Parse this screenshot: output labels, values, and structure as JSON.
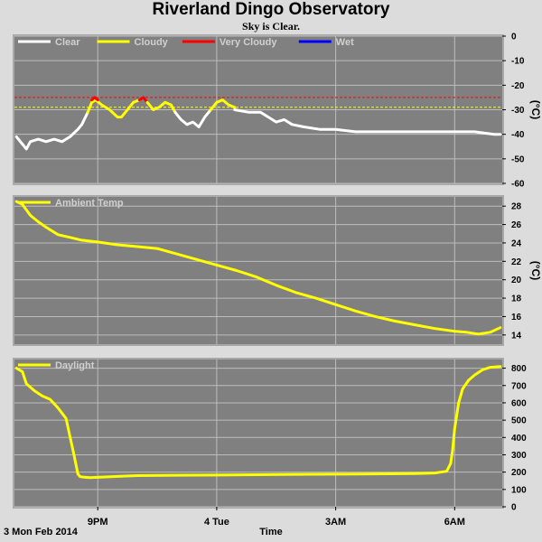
{
  "header": {
    "title": "Riverland Dingo Observatory",
    "subtitle": "Sky is Clear."
  },
  "footer": {
    "date": "3 Mon Feb 2014",
    "xlabel": "Time"
  },
  "colors": {
    "plot_bg": "#808080",
    "grid": "#bdbdbd",
    "frame": "#a8a8a8",
    "page": "#dcdcdc",
    "clear": "#ffffff",
    "cloudy": "#ffff00",
    "very_cloudy": "#ff0000",
    "wet": "#0000ff"
  },
  "x_ticks": [
    {
      "t": 9,
      "label": "9PM"
    },
    {
      "t": 12,
      "label": "4 Tue"
    },
    {
      "t": 15,
      "label": "3AM"
    },
    {
      "t": 18,
      "label": "6AM"
    }
  ],
  "x_domain": [
    6.9,
    19.2
  ],
  "chart_data": [
    {
      "type": "line",
      "title": "",
      "ylabel": "(°C)",
      "ylim": [
        -60,
        0
      ],
      "y_ticks": [
        0,
        -10,
        -20,
        -30,
        -40,
        -50,
        -60
      ],
      "legend": [
        "Clear",
        "Cloudy",
        "Very Cloudy",
        "Wet"
      ],
      "thresholds": [
        {
          "y": -25,
          "color": "#ff0000"
        },
        {
          "y": -29,
          "color": "#ffff00"
        }
      ],
      "series": [
        {
          "name": "Clear",
          "color": "#ffffff",
          "x": [
            6.95,
            7.1,
            7.2,
            7.3,
            7.5,
            7.7,
            7.9,
            8.1,
            8.3,
            8.5,
            8.6,
            8.75
          ],
          "y": [
            -41,
            -44,
            -46,
            -43,
            -42,
            -43,
            -42,
            -43,
            -41,
            -38,
            -36,
            -31
          ]
        },
        {
          "name": "Cloudy",
          "color": "#ffff00",
          "x": [
            8.75,
            8.85,
            8.95,
            9.1,
            9.3,
            9.5,
            9.6,
            9.7,
            9.8,
            9.9,
            10.05
          ],
          "y": [
            -31,
            -27,
            -26,
            -28,
            -30,
            -33,
            -33,
            -31,
            -29,
            -27,
            -26
          ]
        },
        {
          "name": "Very Cloudy",
          "color": "#ff0000",
          "x": [
            8.85,
            8.92,
            9.0
          ],
          "y": [
            -26,
            -25,
            -26
          ]
        },
        {
          "name": "Very Cloudy",
          "color": "#ff0000",
          "x": [
            10.05,
            10.15,
            10.25
          ],
          "y": [
            -26,
            -25,
            -27
          ]
        },
        {
          "name": "Cloudy",
          "color": "#ffff00",
          "x": [
            10.25,
            10.4,
            10.55,
            10.7,
            10.85,
            10.95
          ],
          "y": [
            -27,
            -30,
            -29,
            -27,
            -28,
            -31
          ]
        },
        {
          "name": "Clear",
          "color": "#ffffff",
          "x": [
            10.95,
            11.1,
            11.25,
            11.4,
            11.55,
            11.7,
            11.85
          ],
          "y": [
            -31,
            -34,
            -36,
            -35,
            -37,
            -33,
            -30
          ]
        },
        {
          "name": "Cloudy",
          "color": "#ffff00",
          "x": [
            11.85,
            12.0,
            12.15,
            12.3,
            12.45
          ],
          "y": [
            -30,
            -27,
            -26,
            -28,
            -29
          ]
        },
        {
          "name": "Clear",
          "color": "#ffffff",
          "x": [
            12.45,
            12.8,
            13.1,
            13.3,
            13.5,
            13.7,
            13.9,
            14.2,
            14.6,
            15.0,
            15.5,
            16.0,
            16.5,
            17.0,
            17.5,
            18.0,
            18.5,
            19.0,
            19.15
          ],
          "y": [
            -30,
            -31,
            -31,
            -33,
            -35,
            -34,
            -36,
            -37,
            -38,
            -38,
            -39,
            -39,
            -39,
            -39,
            -39,
            -39,
            -39,
            -40,
            -40
          ]
        }
      ]
    },
    {
      "type": "line",
      "title": "",
      "ylabel": "(°C)",
      "ylim": [
        13,
        29
      ],
      "y_ticks": [
        14,
        16,
        18,
        20,
        22,
        24,
        26,
        28
      ],
      "legend": [
        "Ambient Temp"
      ],
      "series": [
        {
          "name": "Ambient Temp",
          "color": "#ffff00",
          "x": [
            6.95,
            7.1,
            7.3,
            7.5,
            7.7,
            8.0,
            8.3,
            8.6,
            9.0,
            9.5,
            10.0,
            10.5,
            11.0,
            11.5,
            12.0,
            12.5,
            13.0,
            13.5,
            14.0,
            14.5,
            15.0,
            15.5,
            16.0,
            16.5,
            17.0,
            17.5,
            18.0,
            18.3,
            18.6,
            18.9,
            19.15
          ],
          "y": [
            28.5,
            28.2,
            27.0,
            26.3,
            25.7,
            24.9,
            24.6,
            24.3,
            24.1,
            23.8,
            23.6,
            23.4,
            22.8,
            22.2,
            21.6,
            21.0,
            20.3,
            19.4,
            18.6,
            18.0,
            17.3,
            16.6,
            16.0,
            15.5,
            15.1,
            14.7,
            14.4,
            14.3,
            14.1,
            14.3,
            14.8
          ]
        }
      ]
    },
    {
      "type": "line",
      "title": "",
      "ylabel": "",
      "ylim": [
        0,
        850
      ],
      "y_ticks": [
        0,
        100,
        200,
        300,
        400,
        500,
        600,
        700,
        800
      ],
      "legend": [
        "Daylight"
      ],
      "series": [
        {
          "name": "Daylight",
          "color": "#ffff00",
          "x": [
            6.95,
            7.1,
            7.2,
            7.4,
            7.6,
            7.8,
            8.0,
            8.2,
            8.4,
            8.5,
            8.55,
            8.6,
            8.7,
            8.8,
            9.0,
            9.5,
            10.0,
            11.0,
            12.0,
            13.0,
            14.0,
            15.0,
            16.0,
            17.0,
            17.5,
            17.8,
            17.9,
            17.95,
            18.0,
            18.1,
            18.2,
            18.35,
            18.5,
            18.7,
            18.9,
            19.15
          ],
          "y": [
            800,
            780,
            710,
            670,
            640,
            620,
            570,
            510,
            300,
            190,
            175,
            172,
            170,
            168,
            170,
            175,
            180,
            182,
            183,
            185,
            187,
            188,
            190,
            192,
            195,
            205,
            250,
            330,
            450,
            600,
            680,
            730,
            760,
            790,
            805,
            810
          ]
        }
      ]
    }
  ]
}
